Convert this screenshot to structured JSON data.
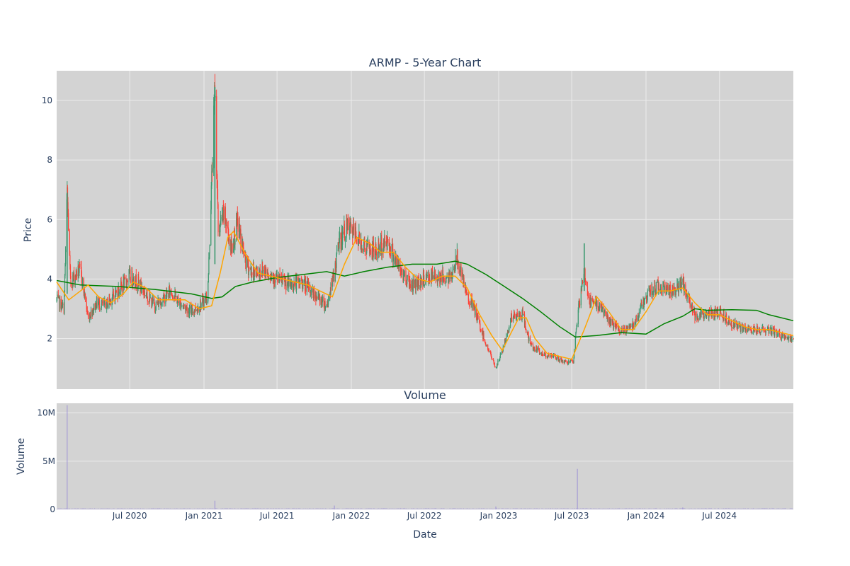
{
  "colors": {
    "plot_bg": "#d3d3d3",
    "grid": "#ebebeb",
    "up": "#3d9970",
    "down": "#ff4136",
    "ma_short": "#ffa500",
    "ma_long": "#008000",
    "volume": "#9b8fd6",
    "text": "#2a3f5f"
  },
  "chart_data": [
    {
      "type": "candlestick",
      "title": "ARMP - 5-Year Chart",
      "xlabel": "",
      "ylabel": "Price",
      "xlim": [
        "2020-01-02",
        "2024-12-31"
      ],
      "ylim": [
        0.3,
        11.0
      ],
      "y_ticks": [
        2,
        4,
        6,
        8,
        10
      ],
      "x_ticks": [
        {
          "date": "2020-07-01",
          "label": "Jul 2020"
        },
        {
          "date": "2021-01-01",
          "label": "Jan 2021"
        },
        {
          "date": "2021-07-01",
          "label": "Jul 2021"
        },
        {
          "date": "2022-01-01",
          "label": "Jan 2022"
        },
        {
          "date": "2022-07-01",
          "label": "Jul 2022"
        },
        {
          "date": "2023-01-01",
          "label": "Jan 2023"
        },
        {
          "date": "2023-07-01",
          "label": "Jul 2023"
        },
        {
          "date": "2024-01-01",
          "label": "Jan 2024"
        },
        {
          "date": "2024-07-01",
          "label": "Jul 2024"
        }
      ],
      "grid": true,
      "close_path": [
        [
          "2020-01-02",
          3.3
        ],
        [
          "2020-01-20",
          3.0
        ],
        [
          "2020-01-28",
          6.9
        ],
        [
          "2020-02-05",
          3.9
        ],
        [
          "2020-02-20",
          4.2
        ],
        [
          "2020-03-01",
          4.3
        ],
        [
          "2020-03-20",
          2.7
        ],
        [
          "2020-04-10",
          3.2
        ],
        [
          "2020-05-01",
          3.1
        ],
        [
          "2020-05-20",
          3.4
        ],
        [
          "2020-06-15",
          3.8
        ],
        [
          "2020-07-01",
          4.1
        ],
        [
          "2020-07-20",
          3.9
        ],
        [
          "2020-08-10",
          3.5
        ],
        [
          "2020-09-01",
          3.1
        ],
        [
          "2020-09-20",
          3.3
        ],
        [
          "2020-10-10",
          3.6
        ],
        [
          "2020-11-01",
          3.2
        ],
        [
          "2020-12-01",
          2.9
        ],
        [
          "2020-12-20",
          3.1
        ],
        [
          "2021-01-10",
          3.4
        ],
        [
          "2021-01-28",
          10.5
        ],
        [
          "2021-02-05",
          5.6
        ],
        [
          "2021-02-20",
          6.2
        ],
        [
          "2021-03-10",
          5.0
        ],
        [
          "2021-03-25",
          5.9
        ],
        [
          "2021-04-15",
          4.5
        ],
        [
          "2021-05-01",
          4.2
        ],
        [
          "2021-06-01",
          4.3
        ],
        [
          "2021-07-01",
          4.0
        ],
        [
          "2021-08-01",
          3.8
        ],
        [
          "2021-09-01",
          3.9
        ],
        [
          "2021-10-01",
          3.5
        ],
        [
          "2021-11-01",
          3.1
        ],
        [
          "2021-11-20",
          4.2
        ],
        [
          "2021-12-01",
          5.2
        ],
        [
          "2021-12-20",
          5.7
        ],
        [
          "2022-01-05",
          5.6
        ],
        [
          "2022-02-01",
          5.1
        ],
        [
          "2022-03-01",
          4.9
        ],
        [
          "2022-04-01",
          5.3
        ],
        [
          "2022-05-01",
          4.3
        ],
        [
          "2022-06-01",
          3.8
        ],
        [
          "2022-07-01",
          4.0
        ],
        [
          "2022-08-01",
          4.1
        ],
        [
          "2022-09-01",
          4.0
        ],
        [
          "2022-09-20",
          4.7
        ],
        [
          "2022-10-10",
          3.6
        ],
        [
          "2022-11-01",
          3.0
        ],
        [
          "2022-12-01",
          1.8
        ],
        [
          "2022-12-25",
          1.0
        ],
        [
          "2023-01-15",
          1.8
        ],
        [
          "2023-02-01",
          2.7
        ],
        [
          "2023-03-01",
          2.8
        ],
        [
          "2023-03-20",
          1.8
        ],
        [
          "2023-04-15",
          1.5
        ],
        [
          "2023-05-15",
          1.4
        ],
        [
          "2023-06-15",
          1.2
        ],
        [
          "2023-07-05",
          1.2
        ],
        [
          "2023-07-15",
          2.8
        ],
        [
          "2023-08-01",
          4.2
        ],
        [
          "2023-08-15",
          3.2
        ],
        [
          "2023-09-10",
          3.1
        ],
        [
          "2023-10-01",
          2.6
        ],
        [
          "2023-11-01",
          2.2
        ],
        [
          "2023-12-01",
          2.5
        ],
        [
          "2024-01-01",
          3.4
        ],
        [
          "2024-02-01",
          3.8
        ],
        [
          "2024-03-01",
          3.6
        ],
        [
          "2024-04-01",
          3.8
        ],
        [
          "2024-05-01",
          2.8
        ],
        [
          "2024-06-01",
          2.8
        ],
        [
          "2024-07-01",
          2.9
        ],
        [
          "2024-08-01",
          2.5
        ],
        [
          "2024-09-01",
          2.3
        ],
        [
          "2024-10-01",
          2.3
        ],
        [
          "2024-11-01",
          2.3
        ],
        [
          "2024-12-01",
          2.1
        ],
        [
          "2024-12-31",
          1.9
        ]
      ],
      "series": [
        {
          "type": "line",
          "points": [
            [
              "2020-01-02",
              3.9
            ],
            [
              "2020-02-01",
              3.3
            ],
            [
              "2020-03-01",
              3.6
            ],
            [
              "2020-03-20",
              3.8
            ],
            [
              "2020-04-15",
              3.4
            ],
            [
              "2020-05-15",
              3.2
            ],
            [
              "2020-06-15",
              3.5
            ],
            [
              "2020-07-10",
              3.9
            ],
            [
              "2020-08-10",
              3.7
            ],
            [
              "2020-09-10",
              3.3
            ],
            [
              "2020-10-15",
              3.3
            ],
            [
              "2020-11-15",
              3.3
            ],
            [
              "2020-12-20",
              3.0
            ],
            [
              "2021-01-20",
              3.1
            ],
            [
              "2021-02-10",
              4.2
            ],
            [
              "2021-03-01",
              5.4
            ],
            [
              "2021-03-15",
              5.6
            ],
            [
              "2021-04-15",
              4.8
            ],
            [
              "2021-05-15",
              4.2
            ],
            [
              "2021-06-15",
              4.1
            ],
            [
              "2021-07-15",
              4.0
            ],
            [
              "2021-08-15",
              3.9
            ],
            [
              "2021-09-15",
              3.8
            ],
            [
              "2021-10-15",
              3.6
            ],
            [
              "2021-11-15",
              3.4
            ],
            [
              "2021-12-15",
              4.5
            ],
            [
              "2022-01-15",
              5.4
            ],
            [
              "2022-02-15",
              5.2
            ],
            [
              "2022-03-15",
              4.9
            ],
            [
              "2022-04-15",
              4.9
            ],
            [
              "2022-05-15",
              4.4
            ],
            [
              "2022-06-15",
              4.0
            ],
            [
              "2022-07-15",
              3.9
            ],
            [
              "2022-08-15",
              4.1
            ],
            [
              "2022-09-15",
              4.1
            ],
            [
              "2022-10-15",
              3.7
            ],
            [
              "2022-11-15",
              2.8
            ],
            [
              "2022-12-15",
              2.1
            ],
            [
              "2023-01-10",
              1.6
            ],
            [
              "2023-02-01",
              2.2
            ],
            [
              "2023-02-20",
              2.7
            ],
            [
              "2023-03-10",
              2.7
            ],
            [
              "2023-04-01",
              2.0
            ],
            [
              "2023-05-01",
              1.5
            ],
            [
              "2023-06-01",
              1.4
            ],
            [
              "2023-07-01",
              1.3
            ],
            [
              "2023-08-01",
              2.3
            ],
            [
              "2023-09-01",
              3.4
            ],
            [
              "2023-10-01",
              2.9
            ],
            [
              "2023-11-01",
              2.3
            ],
            [
              "2023-12-01",
              2.3
            ],
            [
              "2024-01-01",
              2.9
            ],
            [
              "2024-02-01",
              3.6
            ],
            [
              "2024-03-01",
              3.6
            ],
            [
              "2024-04-01",
              3.7
            ],
            [
              "2024-05-01",
              3.2
            ],
            [
              "2024-06-01",
              2.8
            ],
            [
              "2024-07-01",
              2.8
            ],
            [
              "2024-08-01",
              2.6
            ],
            [
              "2024-09-01",
              2.4
            ],
            [
              "2024-10-01",
              2.3
            ],
            [
              "2024-11-01",
              2.3
            ],
            [
              "2024-12-01",
              2.2
            ],
            [
              "2024-12-31",
              2.1
            ]
          ]
        },
        {
          "type": "line",
          "points": [
            [
              "2020-01-02",
              3.95
            ],
            [
              "2020-03-01",
              3.8
            ],
            [
              "2020-06-01",
              3.75
            ],
            [
              "2020-09-01",
              3.65
            ],
            [
              "2020-12-01",
              3.5
            ],
            [
              "2021-01-20",
              3.35
            ],
            [
              "2021-02-15",
              3.4
            ],
            [
              "2021-03-20",
              3.75
            ],
            [
              "2021-05-01",
              3.9
            ],
            [
              "2021-07-01",
              4.05
            ],
            [
              "2021-09-01",
              4.15
            ],
            [
              "2021-11-01",
              4.25
            ],
            [
              "2021-12-15",
              4.1
            ],
            [
              "2022-02-01",
              4.25
            ],
            [
              "2022-04-01",
              4.4
            ],
            [
              "2022-06-01",
              4.5
            ],
            [
              "2022-08-01",
              4.5
            ],
            [
              "2022-09-15",
              4.6
            ],
            [
              "2022-10-15",
              4.5
            ],
            [
              "2022-12-01",
              4.15
            ],
            [
              "2023-01-15",
              3.75
            ],
            [
              "2023-03-01",
              3.35
            ],
            [
              "2023-04-15",
              2.9
            ],
            [
              "2023-06-01",
              2.4
            ],
            [
              "2023-07-10",
              2.05
            ],
            [
              "2023-09-01",
              2.1
            ],
            [
              "2023-11-01",
              2.2
            ],
            [
              "2024-01-01",
              2.15
            ],
            [
              "2024-02-15",
              2.5
            ],
            [
              "2024-04-01",
              2.75
            ],
            [
              "2024-05-01",
              3.0
            ],
            [
              "2024-06-01",
              2.95
            ],
            [
              "2024-08-01",
              2.97
            ],
            [
              "2024-10-01",
              2.95
            ],
            [
              "2024-11-01",
              2.8
            ],
            [
              "2024-12-31",
              2.6
            ]
          ]
        }
      ]
    },
    {
      "type": "bar",
      "title": "Volume",
      "xlabel": "Date",
      "ylabel": "Volume",
      "ylim": [
        0,
        11000000
      ],
      "y_ticks": [
        {
          "value": 0,
          "label": "0"
        },
        {
          "value": 5000000,
          "label": "5M"
        },
        {
          "value": 10000000,
          "label": "10M"
        }
      ],
      "baseline_volume": 100000,
      "spikes": [
        [
          "2020-01-28",
          10800000
        ],
        [
          "2021-01-28",
          900000
        ],
        [
          "2021-11-20",
          400000
        ],
        [
          "2022-12-25",
          300000
        ],
        [
          "2023-07-15",
          4200000
        ],
        [
          "2024-04-01",
          200000
        ]
      ]
    }
  ]
}
